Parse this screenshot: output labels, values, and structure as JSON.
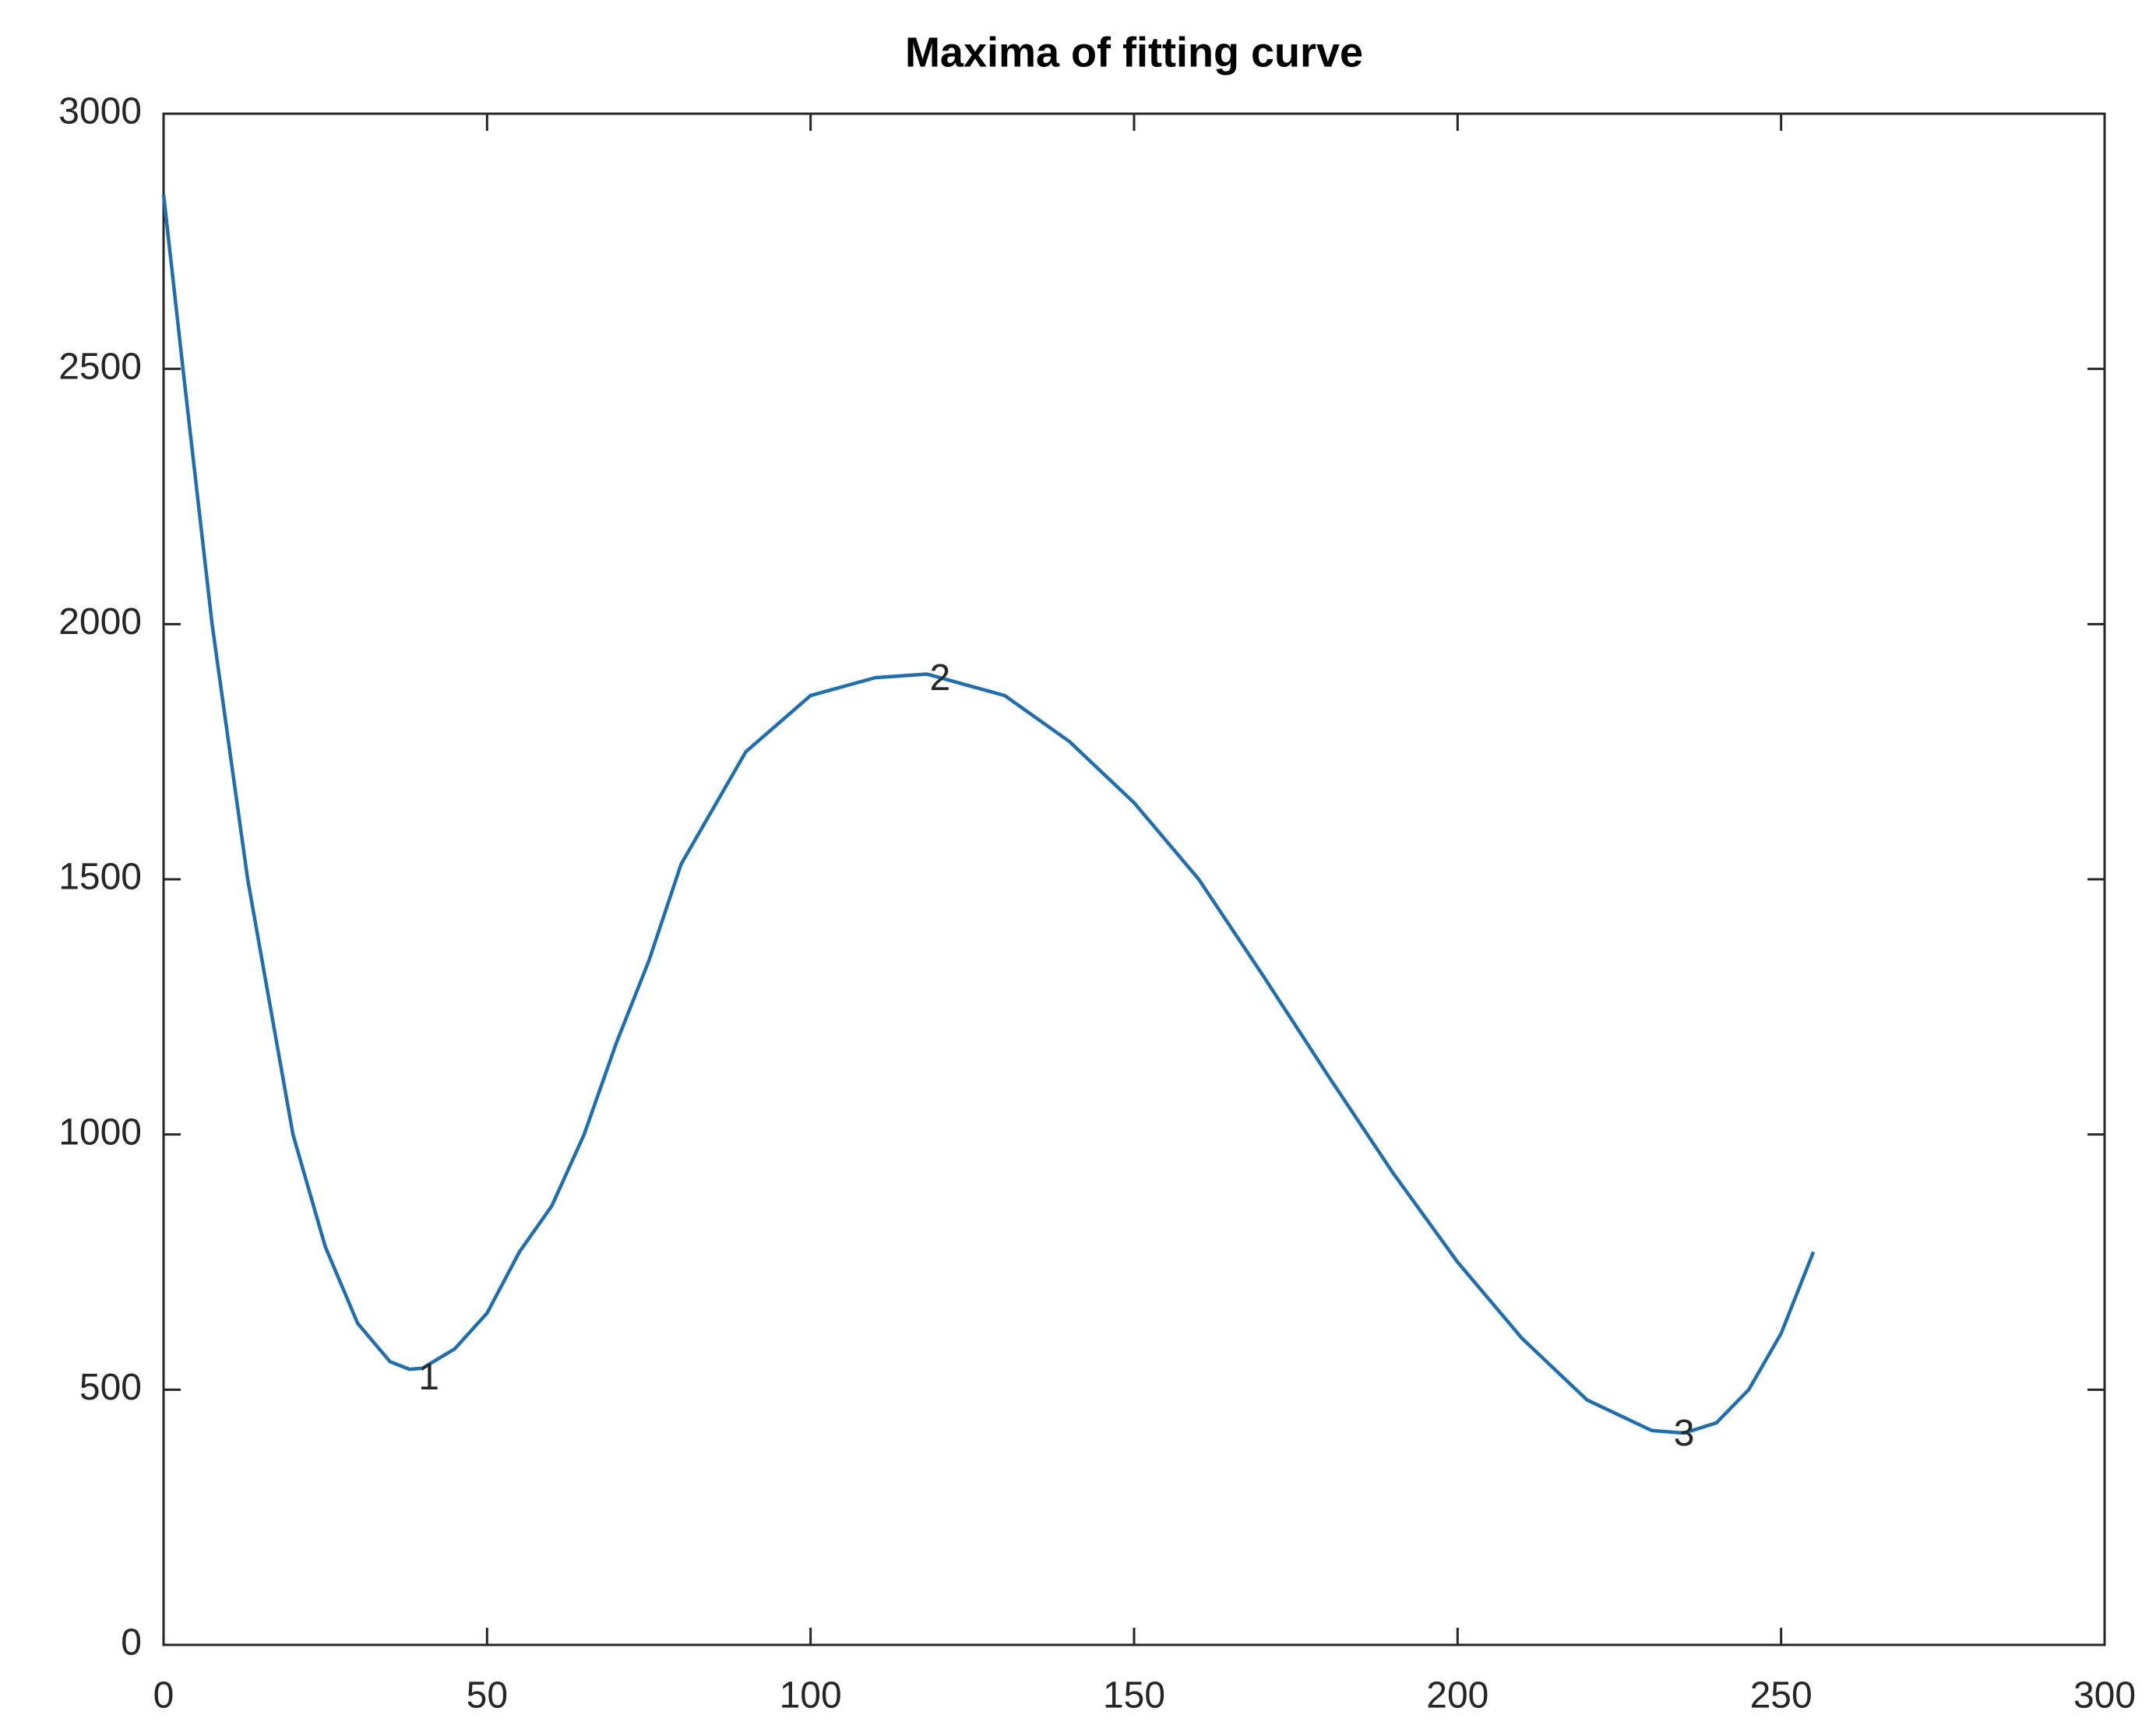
{
  "chart_data": {
    "type": "line",
    "title": "Maxima of fitting curve",
    "x": [
      0,
      3,
      7.5,
      13,
      20,
      25,
      30,
      35,
      38,
      40,
      45,
      50,
      55,
      60,
      65,
      70,
      75,
      80,
      90,
      100,
      110,
      118,
      130,
      140,
      150,
      160,
      170,
      180,
      190,
      200,
      210,
      220,
      230,
      235,
      240,
      245,
      250,
      255
    ],
    "series": [
      {
        "color": "#1f6fb0",
        "values": [
          2842,
          2500,
          2000,
          1500,
          1000,
          780,
          630,
          555,
          540,
          542,
          580,
          650,
          770,
          860,
          1000,
          1180,
          1340,
          1530,
          1750,
          1860,
          1895,
          1902,
          1860,
          1770,
          1650,
          1500,
          1310,
          1115,
          925,
          750,
          600,
          480,
          420,
          415,
          435,
          500,
          610,
          770
        ]
      }
    ],
    "annotations": [
      {
        "text": "1",
        "x": 41,
        "y": 520
      },
      {
        "text": "2",
        "x": 120,
        "y": 1890
      },
      {
        "text": "3",
        "x": 235,
        "y": 410
      }
    ],
    "xlim": [
      0,
      300
    ],
    "xticks": [
      0,
      50,
      100,
      150,
      200,
      250,
      300
    ],
    "ylim": [
      0,
      3000
    ],
    "yticks": [
      0,
      500,
      1000,
      1500,
      2000,
      2500,
      3000
    ]
  }
}
